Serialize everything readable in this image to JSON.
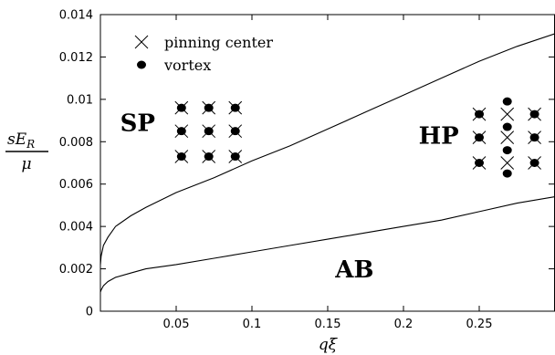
{
  "chart_data": {
    "type": "line",
    "xlabel": "qξ",
    "ylabel_numerator": "sE",
    "ylabel_subscript": "R",
    "ylabel_denominator": "μ",
    "xlim": [
      0,
      0.3
    ],
    "ylim": [
      0,
      0.014
    ],
    "x_ticks": [
      0.05,
      0.1,
      0.15,
      0.2,
      0.25
    ],
    "y_ticks": [
      0,
      0.002,
      0.004,
      0.006,
      0.008,
      0.01,
      0.012,
      0.014
    ],
    "x_tick_labels": [
      "0.05",
      "0.1",
      "0.15",
      "0.2",
      "0.25"
    ],
    "y_tick_labels": [
      "0",
      "0.002",
      "0.004",
      "0.006",
      "0.008",
      "0.01",
      "0.012",
      "0.014"
    ],
    "grid": false,
    "legend": {
      "placement": "top-left",
      "entries": [
        {
          "label": "pinning center",
          "marker": "cross"
        },
        {
          "label": "vortex",
          "marker": "filled-circle"
        }
      ]
    },
    "series": [
      {
        "x": [
          0.0,
          0.0005,
          0.002,
          0.005,
          0.01,
          0.02,
          0.03,
          0.05,
          0.075,
          0.1,
          0.125,
          0.15,
          0.175,
          0.2,
          0.225,
          0.25,
          0.275,
          0.3
        ],
        "y": [
          0.0022,
          0.0026,
          0.0031,
          0.0035,
          0.004,
          0.0045,
          0.0049,
          0.0056,
          0.0063,
          0.0071,
          0.0078,
          0.0086,
          0.0094,
          0.0102,
          0.011,
          0.0118,
          0.0125,
          0.0131
        ]
      },
      {
        "x": [
          0.0,
          0.0005,
          0.002,
          0.005,
          0.01,
          0.02,
          0.03,
          0.05,
          0.075,
          0.1,
          0.125,
          0.15,
          0.175,
          0.2,
          0.225,
          0.25,
          0.275,
          0.3
        ],
        "y": [
          0.0009,
          0.001,
          0.0012,
          0.0014,
          0.0016,
          0.0018,
          0.002,
          0.0022,
          0.0025,
          0.0028,
          0.0031,
          0.0034,
          0.0037,
          0.004,
          0.0043,
          0.0047,
          0.0051,
          0.0054
        ]
      }
    ],
    "regions": [
      {
        "label": "SP",
        "x": 0.013,
        "y": 0.0085
      },
      {
        "label": "HP",
        "x": 0.21,
        "y": 0.0079
      },
      {
        "label": "AB",
        "x": 0.155,
        "y": 0.0016
      }
    ],
    "insets": {
      "sp_lattice": {
        "rows_y": [
          0.0096,
          0.0085,
          0.0073
        ],
        "cols_x": [
          0.0535,
          0.0715,
          0.089
        ],
        "marker": "vortex-on-pinning-center"
      },
      "hp_lattice": {
        "side_cols_x": [
          0.25,
          0.2865
        ],
        "side_rows_y": [
          0.0093,
          0.0082,
          0.007
        ],
        "center_x": 0.2685,
        "center_crosses_y": [
          0.0093,
          0.0082,
          0.007
        ],
        "center_vortices_y": [
          0.0099,
          0.0087,
          0.0076,
          0.0065
        ]
      }
    }
  }
}
